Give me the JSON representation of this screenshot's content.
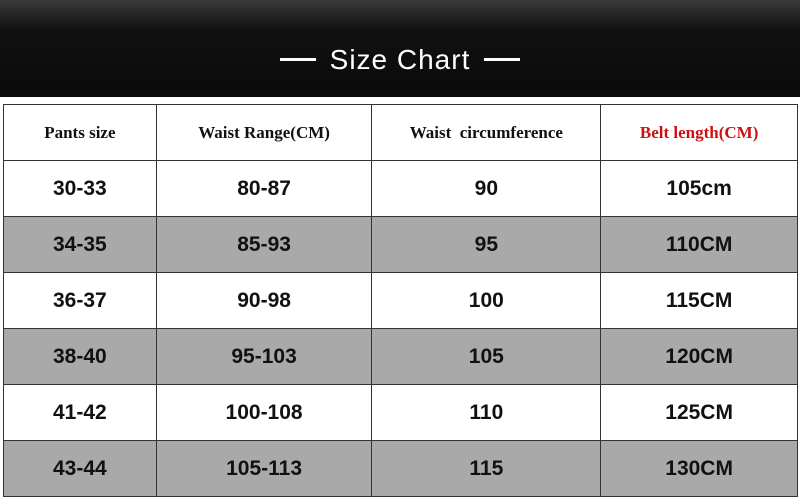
{
  "title": "Size Chart",
  "accent_color": "#d01010",
  "columns": [
    "Pants size",
    "Waist Range(CM)",
    "Waist  circumference",
    "Belt length(CM)"
  ],
  "rows": [
    [
      "30-33",
      "80-87",
      "90",
      "105cm"
    ],
    [
      "34-35",
      "85-93",
      "95",
      "110CM"
    ],
    [
      "36-37",
      "90-98",
      "100",
      "115CM"
    ],
    [
      "38-40",
      "95-103",
      "105",
      "120CM"
    ],
    [
      "41-42",
      "100-108",
      "110",
      "125CM"
    ],
    [
      "43-44",
      "105-113",
      "115",
      "130CM"
    ]
  ]
}
